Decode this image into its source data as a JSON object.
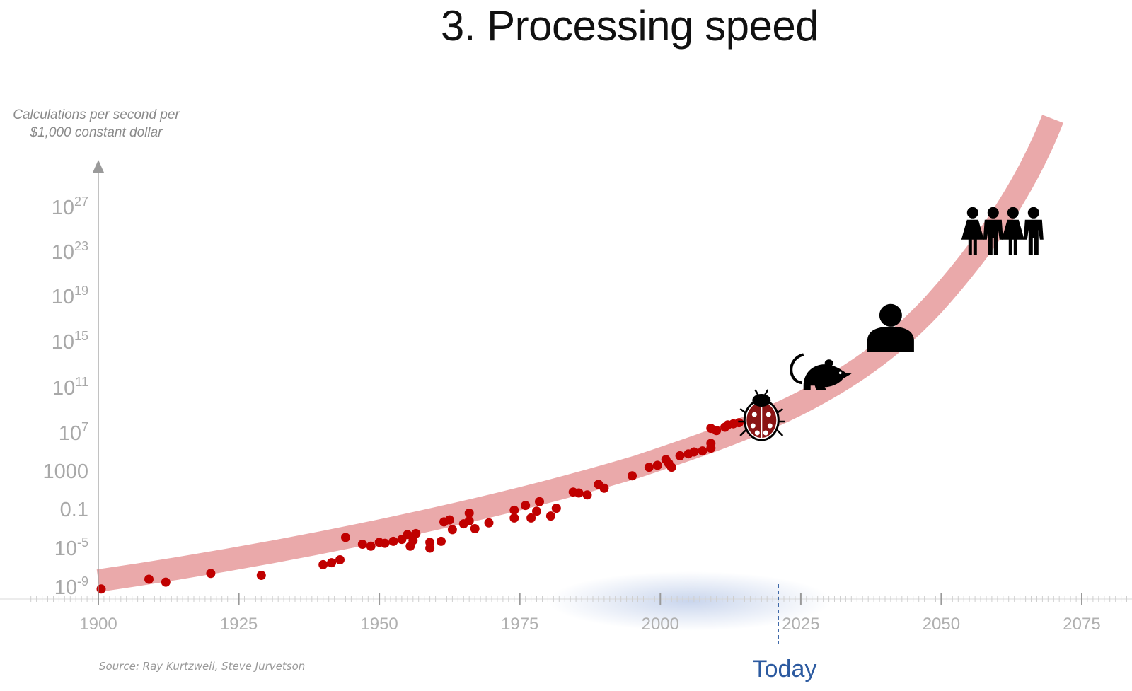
{
  "chart_data": {
    "type": "scatter",
    "title": "3. Processing speed",
    "ylabel": [
      "Calculations per second per",
      "$1,000 constant dollar"
    ],
    "xlabel": "",
    "xlim": [
      1900,
      2075
    ],
    "x_ticks": [
      "1900",
      "1925",
      "1950",
      "1975",
      "2000",
      "2025",
      "2050",
      "2075"
    ],
    "y_scale": "log",
    "y_ticks": [
      {
        "base": "10",
        "exp": "-9",
        "log": -9
      },
      {
        "base": "10",
        "exp": "-5",
        "log": -5
      },
      {
        "base": "0.1",
        "exp": "",
        "log": -1
      },
      {
        "base": "1000",
        "exp": "",
        "log": 3
      },
      {
        "base": "10",
        "exp": "7",
        "log": 7
      },
      {
        "base": "10",
        "exp": "11",
        "log": 11
      },
      {
        "base": "10",
        "exp": "15",
        "log": 15
      },
      {
        "base": "10",
        "exp": "19",
        "log": 19
      },
      {
        "base": "10",
        "exp": "23",
        "log": 23
      },
      {
        "base": "10",
        "exp": "27",
        "log": 27
      }
    ],
    "trend_band": {
      "color": "#eaa9aa"
    },
    "point_color": "#c00000",
    "today_marker": {
      "year": 2021,
      "label": "Today",
      "color": "#2c5aa0"
    },
    "icons": [
      {
        "name": "ladybug-icon",
        "year": 2018,
        "log": 8.5
      },
      {
        "name": "mouse-icon",
        "year": 2027,
        "log": 12.4
      },
      {
        "name": "person-icon",
        "year": 2041,
        "log": 16.2
      },
      {
        "name": "four-people-icon",
        "year": 2061,
        "log": 24.6
      }
    ],
    "points": [
      [
        1900.5,
        -9.2
      ],
      [
        1909,
        -8.2
      ],
      [
        1912,
        -8.5
      ],
      [
        1920,
        -7.6
      ],
      [
        1929,
        -7.8
      ],
      [
        1940,
        -6.7
      ],
      [
        1941.5,
        -6.5
      ],
      [
        1943,
        -6.2
      ],
      [
        1944,
        -3.9
      ],
      [
        1947,
        -4.6
      ],
      [
        1948.5,
        -4.8
      ],
      [
        1950,
        -4.4
      ],
      [
        1951,
        -4.5
      ],
      [
        1952.5,
        -4.3
      ],
      [
        1954,
        -4.1
      ],
      [
        1955,
        -3.6
      ],
      [
        1955.5,
        -4.8
      ],
      [
        1956,
        -4.2
      ],
      [
        1956.5,
        -3.5
      ],
      [
        1959,
        -5.0
      ],
      [
        1959,
        -4.4
      ],
      [
        1961,
        -4.3
      ],
      [
        1961.5,
        -2.3
      ],
      [
        1962.5,
        -2.1
      ],
      [
        1963,
        -3.1
      ],
      [
        1965,
        -2.5
      ],
      [
        1966,
        -2.2
      ],
      [
        1966,
        -1.4
      ],
      [
        1967,
        -3.0
      ],
      [
        1969.5,
        -2.4
      ],
      [
        1974,
        -1.9
      ],
      [
        1974,
        -1.1
      ],
      [
        1976,
        -0.6
      ],
      [
        1977,
        -1.9
      ],
      [
        1978,
        -1.2
      ],
      [
        1978.5,
        -0.2
      ],
      [
        1980.5,
        -1.7
      ],
      [
        1981.5,
        -0.9
      ],
      [
        1984.5,
        0.8
      ],
      [
        1985.5,
        0.7
      ],
      [
        1987,
        0.5
      ],
      [
        1989,
        1.6
      ],
      [
        1990,
        1.2
      ],
      [
        1995,
        2.5
      ],
      [
        1998,
        3.4
      ],
      [
        1999.5,
        3.6
      ],
      [
        2001,
        4.2
      ],
      [
        2001.5,
        3.8
      ],
      [
        2002,
        3.4
      ],
      [
        2003.5,
        4.6
      ],
      [
        2005,
        4.8
      ],
      [
        2006,
        5.0
      ],
      [
        2007.5,
        5.1
      ],
      [
        2009,
        5.4
      ],
      [
        2009,
        5.9
      ],
      [
        2009,
        7.4
      ],
      [
        2010,
        7.2
      ],
      [
        2011.5,
        7.5
      ],
      [
        2012,
        7.7
      ],
      [
        2013,
        7.8
      ],
      [
        2014,
        7.9
      ],
      [
        2016,
        7.8
      ],
      [
        2017,
        8.0
      ],
      [
        2018,
        8.1
      ]
    ]
  }
}
